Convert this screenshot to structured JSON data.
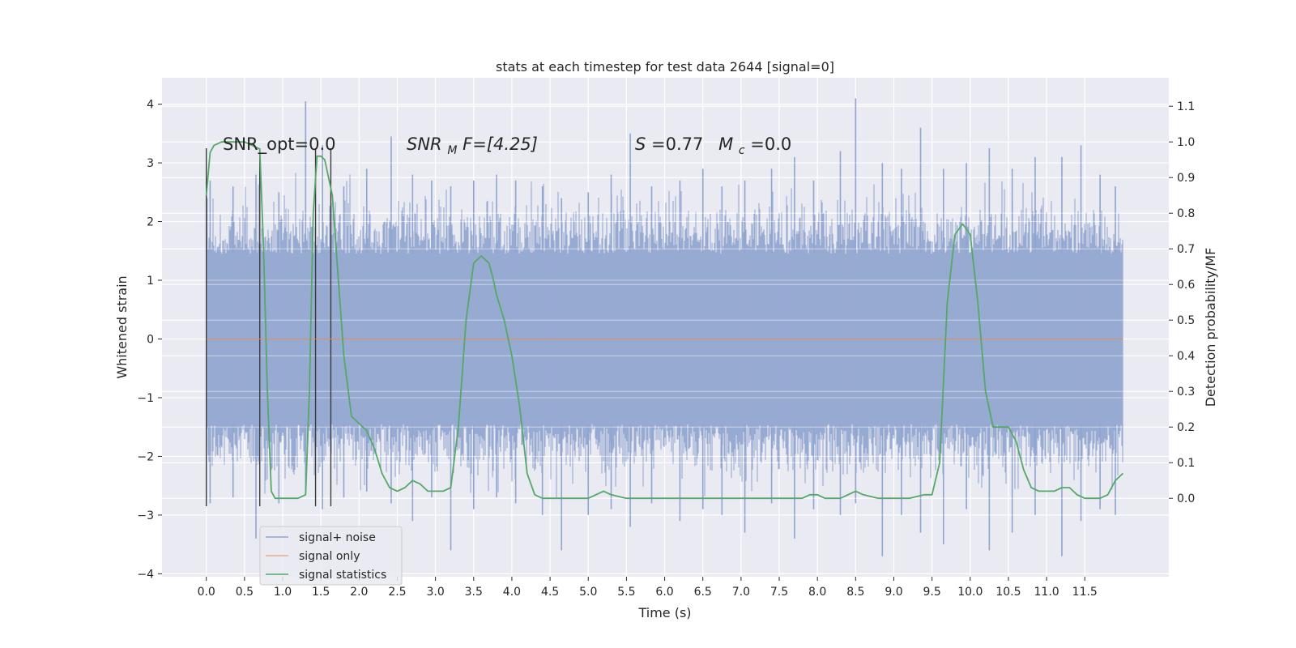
{
  "chart_data": {
    "type": "line",
    "title": "stats at each timestep for test data 2644 [signal=0]",
    "xlabel": "Time (s)",
    "ylabel": "Whitened strain",
    "y2label": "Detection probability/MF",
    "xlim": [
      -0.58,
      12.6
    ],
    "ylim": [
      -4.05,
      4.45
    ],
    "y2lim": [
      -0.22,
      1.18
    ],
    "grid": true,
    "legend_placement": "lower-left",
    "x_ticks": [
      "0.0",
      "0.5",
      "1.0",
      "1.5",
      "2.0",
      "2.5",
      "3.0",
      "3.5",
      "4.0",
      "4.5",
      "5.0",
      "5.5",
      "6.0",
      "6.5",
      "7.0",
      "7.5",
      "8.0",
      "8.5",
      "9.0",
      "9.5",
      "10.0",
      "10.5",
      "11.0",
      "11.5"
    ],
    "y_ticks": [
      "−4",
      "−3",
      "−2",
      "−1",
      "0",
      "1",
      "2",
      "3",
      "4"
    ],
    "y2_ticks": [
      "0.0",
      "0.1",
      "0.2",
      "0.3",
      "0.4",
      "0.5",
      "0.6",
      "0.7",
      "0.8",
      "0.9",
      "1.0",
      "1.1"
    ],
    "annotations": {
      "snr_opt": "SNR_opt=0.0",
      "snr_mf_main": "SNR",
      "snr_mf_sub": "M",
      "snr_mf_rest": "F=[4.25]",
      "s_label": "S",
      "s_value": "=0.77",
      "mc_label": "M",
      "mc_sub": "c",
      "mc_value": "=0.0"
    },
    "series": [
      {
        "name": "signal+ noise",
        "color": "#8fa4cf",
        "noise_band": {
          "x_start": 0.0,
          "x_end": 12.0,
          "core_min": -1.45,
          "core_max": 1.45,
          "typical_peak": 2.0
        },
        "x": [
          0.05,
          0.35,
          0.65,
          0.95,
          1.3,
          1.52,
          1.8,
          2.1,
          2.42,
          2.7,
          2.95,
          3.2,
          3.5,
          3.8,
          4.05,
          4.4,
          4.65,
          5.0,
          5.3,
          5.55,
          5.83,
          6.2,
          6.5,
          6.75,
          7.05,
          7.4,
          7.7,
          7.95,
          8.3,
          8.5,
          8.85,
          9.1,
          9.35,
          9.65,
          9.95,
          10.25,
          10.55,
          10.85,
          11.2,
          11.45,
          11.7,
          11.9
        ],
        "y_max": [
          2.7,
          2.6,
          2.8,
          2.5,
          4.05,
          3.3,
          2.6,
          2.9,
          3.45,
          2.8,
          2.7,
          2.6,
          2.7,
          2.8,
          2.7,
          2.6,
          2.4,
          2.5,
          2.8,
          3.5,
          2.6,
          2.7,
          2.9,
          2.6,
          2.7,
          2.9,
          3.1,
          2.7,
          3.2,
          4.1,
          3.0,
          2.9,
          3.6,
          2.9,
          3.0,
          3.25,
          2.9,
          3.1,
          3.1,
          3.3,
          2.8,
          2.6
        ],
        "y_min": [
          -2.8,
          -2.7,
          -3.4,
          -2.8,
          -2.6,
          -2.9,
          -2.7,
          -2.6,
          -2.8,
          -3.1,
          -2.7,
          -3.6,
          -2.9,
          -2.7,
          -2.8,
          -3.0,
          -3.6,
          -3.0,
          -2.9,
          -3.2,
          -2.8,
          -3.1,
          -2.9,
          -3.0,
          -3.3,
          -2.8,
          -3.4,
          -2.9,
          -3.0,
          -2.8,
          -3.7,
          -3.0,
          -3.3,
          -3.5,
          -2.9,
          -3.6,
          -3.3,
          -3.0,
          -3.7,
          -3.1,
          -2.9,
          -3.0
        ]
      },
      {
        "name": "signal only",
        "color": "#dd8452",
        "x": [
          0.0,
          12.0
        ],
        "y": [
          0.0,
          0.0
        ]
      },
      {
        "name": "signal statistics",
        "color": "#55a868",
        "axis": "right",
        "x": [
          0.0,
          0.05,
          0.1,
          0.2,
          0.3,
          0.4,
          0.5,
          0.6,
          0.7,
          0.75,
          0.8,
          0.85,
          0.9,
          1.0,
          1.1,
          1.2,
          1.3,
          1.35,
          1.4,
          1.45,
          1.5,
          1.55,
          1.6,
          1.65,
          1.7,
          1.8,
          1.9,
          2.0,
          2.1,
          2.2,
          2.3,
          2.4,
          2.5,
          2.6,
          2.7,
          2.8,
          2.9,
          3.0,
          3.1,
          3.2,
          3.3,
          3.4,
          3.5,
          3.6,
          3.7,
          3.75,
          3.8,
          3.9,
          4.0,
          4.1,
          4.2,
          4.3,
          4.4,
          4.5,
          4.6,
          4.8,
          5.0,
          5.1,
          5.2,
          5.3,
          5.5,
          6.0,
          6.5,
          7.0,
          7.5,
          7.8,
          7.9,
          8.0,
          8.1,
          8.3,
          8.4,
          8.5,
          8.6,
          8.8,
          9.0,
          9.2,
          9.4,
          9.5,
          9.6,
          9.7,
          9.8,
          9.9,
          10.0,
          10.1,
          10.2,
          10.3,
          10.4,
          10.5,
          10.6,
          10.7,
          10.8,
          10.9,
          11.0,
          11.1,
          11.2,
          11.3,
          11.4,
          11.5,
          11.6,
          11.7,
          11.8,
          11.9,
          12.0
        ],
        "y": [
          0.85,
          0.97,
          0.99,
          1.0,
          1.0,
          1.0,
          1.0,
          0.99,
          0.98,
          0.7,
          0.3,
          0.02,
          0.0,
          0.0,
          0.0,
          0.0,
          0.01,
          0.3,
          0.8,
          0.96,
          0.96,
          0.95,
          0.9,
          0.85,
          0.7,
          0.4,
          0.23,
          0.21,
          0.19,
          0.14,
          0.07,
          0.03,
          0.02,
          0.03,
          0.05,
          0.04,
          0.02,
          0.02,
          0.02,
          0.03,
          0.2,
          0.5,
          0.66,
          0.68,
          0.66,
          0.62,
          0.57,
          0.5,
          0.4,
          0.26,
          0.07,
          0.01,
          0.0,
          0.0,
          0.0,
          0.0,
          0.0,
          0.01,
          0.02,
          0.01,
          0.0,
          0.0,
          0.0,
          0.0,
          0.0,
          0.0,
          0.01,
          0.01,
          0.0,
          0.0,
          0.01,
          0.02,
          0.01,
          0.0,
          0.0,
          0.0,
          0.01,
          0.01,
          0.1,
          0.55,
          0.74,
          0.77,
          0.74,
          0.55,
          0.3,
          0.2,
          0.2,
          0.2,
          0.16,
          0.08,
          0.03,
          0.02,
          0.02,
          0.02,
          0.03,
          0.03,
          0.01,
          0.0,
          0.0,
          0.0,
          0.01,
          0.05,
          0.07
        ]
      }
    ],
    "vertical_lines": [
      {
        "x": 0.0,
        "ymin": -2.85,
        "ymax": 3.25
      },
      {
        "x": 0.7,
        "ymin": -2.85,
        "ymax": 3.25
      },
      {
        "x": 1.43,
        "ymin": -2.85,
        "ymax": 3.25
      },
      {
        "x": 1.63,
        "ymin": -2.85,
        "ymax": 3.25
      }
    ]
  }
}
